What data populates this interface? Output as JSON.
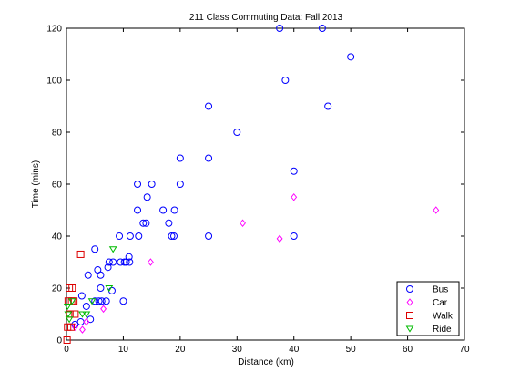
{
  "chart_data": {
    "type": "scatter",
    "title": "211 Class Commuting Data:  Fall 2013",
    "xlabel": "Distance (km)",
    "ylabel": "Time (mins)",
    "xlim": [
      0,
      70
    ],
    "ylim": [
      0,
      120
    ],
    "xticks": [
      0,
      10,
      20,
      30,
      40,
      50,
      60,
      70
    ],
    "yticks": [
      0,
      20,
      40,
      60,
      80,
      100,
      120
    ],
    "grid": false,
    "legend_position": "bottom-right",
    "series": [
      {
        "name": "Bus",
        "marker": "circle",
        "color": "#0000ff",
        "points": [
          [
            1.5,
            6
          ],
          [
            2.5,
            7
          ],
          [
            2.7,
            17
          ],
          [
            3.5,
            13
          ],
          [
            3.8,
            25
          ],
          [
            4.2,
            8
          ],
          [
            5,
            15
          ],
          [
            5,
            35
          ],
          [
            5.5,
            27
          ],
          [
            5.7,
            15
          ],
          [
            6,
            20
          ],
          [
            6,
            25
          ],
          [
            6.2,
            15
          ],
          [
            7,
            15
          ],
          [
            7.3,
            28
          ],
          [
            7.5,
            30
          ],
          [
            8,
            19
          ],
          [
            8.2,
            30
          ],
          [
            9.3,
            40
          ],
          [
            9.5,
            30
          ],
          [
            10,
            15
          ],
          [
            10.2,
            30
          ],
          [
            10.5,
            30
          ],
          [
            11,
            32
          ],
          [
            11.1,
            30
          ],
          [
            11.2,
            40
          ],
          [
            12.5,
            60
          ],
          [
            12.5,
            50
          ],
          [
            12.7,
            40
          ],
          [
            13.5,
            45
          ],
          [
            14,
            45
          ],
          [
            14.2,
            55
          ],
          [
            15,
            60
          ],
          [
            17,
            50
          ],
          [
            18,
            45
          ],
          [
            18.5,
            40
          ],
          [
            18.9,
            40
          ],
          [
            19,
            50
          ],
          [
            20,
            60
          ],
          [
            20,
            70
          ],
          [
            25,
            90
          ],
          [
            25,
            70
          ],
          [
            25,
            40
          ],
          [
            30,
            80
          ],
          [
            37.5,
            120
          ],
          [
            38.5,
            100
          ],
          [
            40,
            65
          ],
          [
            40,
            40
          ],
          [
            45,
            120
          ],
          [
            46,
            90
          ],
          [
            50,
            109
          ]
        ]
      },
      {
        "name": "Car",
        "marker": "diamond",
        "color": "#ff00ff",
        "points": [
          [
            1.5,
            5
          ],
          [
            2.8,
            4
          ],
          [
            3.5,
            7
          ],
          [
            6.5,
            12
          ],
          [
            14.8,
            30
          ],
          [
            31,
            45
          ],
          [
            37.5,
            39
          ],
          [
            40,
            55
          ],
          [
            65,
            50
          ]
        ]
      },
      {
        "name": "Walk",
        "marker": "square",
        "color": "#dd0000",
        "points": [
          [
            0.1,
            0
          ],
          [
            0.2,
            5
          ],
          [
            0.3,
            15
          ],
          [
            0.5,
            20
          ],
          [
            0.6,
            10
          ],
          [
            0.8,
            5
          ],
          [
            0.9,
            15
          ],
          [
            1.0,
            20
          ],
          [
            1.3,
            15
          ],
          [
            1.5,
            10
          ],
          [
            2.5,
            33
          ]
        ]
      },
      {
        "name": "Ride",
        "marker": "triangle-down",
        "color": "#00bb00",
        "points": [
          [
            0.2,
            13
          ],
          [
            0.3,
            10
          ],
          [
            0.5,
            8
          ],
          [
            1.0,
            15
          ],
          [
            2.8,
            10
          ],
          [
            3.5,
            10
          ],
          [
            4.5,
            15
          ],
          [
            7.5,
            20
          ],
          [
            8.2,
            35
          ]
        ]
      }
    ]
  }
}
